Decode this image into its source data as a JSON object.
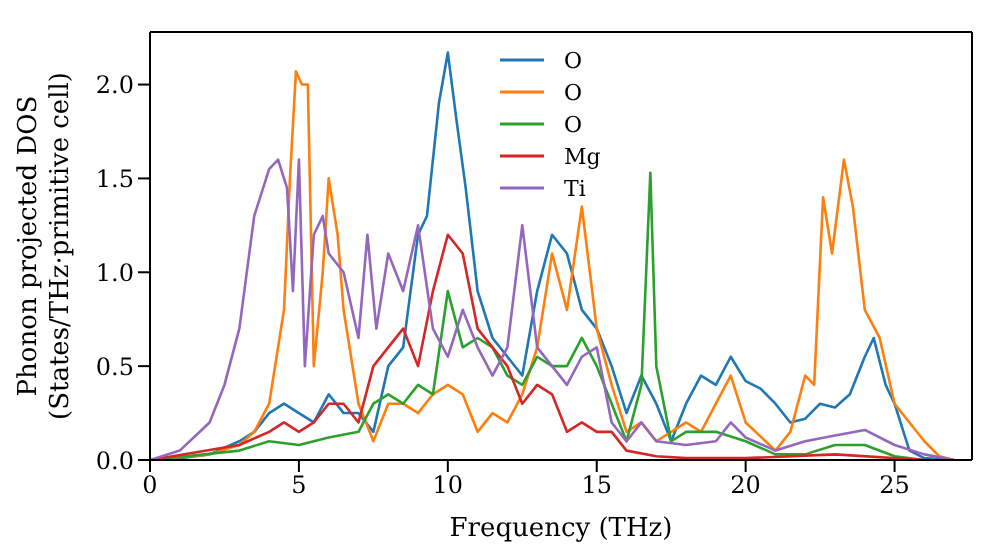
{
  "chart_data": {
    "type": "line",
    "xlabel": "Frequency (THz)",
    "ylabel": "Phonon projected DOS\n(States/THz·primitive cell)",
    "xlim": [
      0,
      27.6
    ],
    "xticks": [
      0,
      5,
      10,
      15,
      20,
      25
    ],
    "ylim": [
      0,
      2.28
    ],
    "yticks": [
      {
        "value": 0,
        "label": "0.0"
      },
      {
        "value": 0.5,
        "label": "0.5"
      },
      {
        "value": 1,
        "label": "1.0"
      },
      {
        "value": 1.5,
        "label": "1.5"
      },
      {
        "value": 2,
        "label": "2.0"
      }
    ],
    "legend": "top",
    "grid": false,
    "marker": "none",
    "line_style": "solid",
    "series": [
      {
        "name": "O",
        "color": "#1f77b4",
        "x": [
          0,
          1,
          2,
          3,
          3.5,
          4,
          4.5,
          5,
          5.5,
          6,
          6.5,
          7,
          7.5,
          8,
          8.5,
          9,
          9.3,
          9.7,
          10,
          10.3,
          10.6,
          11,
          11.5,
          12,
          12.5,
          13,
          13.5,
          14,
          14.5,
          15,
          15.5,
          16,
          16.5,
          17,
          17.5,
          18,
          18.5,
          19,
          19.5,
          20,
          20.5,
          21,
          21.5,
          22,
          22.5,
          23,
          23.5,
          24,
          24.3,
          24.7,
          25,
          25.5,
          26,
          27
        ],
        "values": [
          0,
          0.01,
          0.03,
          0.1,
          0.15,
          0.25,
          0.3,
          0.25,
          0.2,
          0.35,
          0.25,
          0.25,
          0.15,
          0.5,
          0.6,
          1.2,
          1.3,
          1.9,
          2.17,
          1.8,
          1.45,
          0.9,
          0.65,
          0.55,
          0.45,
          0.9,
          1.2,
          1.1,
          0.8,
          0.7,
          0.5,
          0.25,
          0.45,
          0.3,
          0.1,
          0.3,
          0.45,
          0.4,
          0.55,
          0.42,
          0.38,
          0.3,
          0.2,
          0.22,
          0.3,
          0.28,
          0.35,
          0.55,
          0.65,
          0.4,
          0.3,
          0.05,
          0.01,
          0
        ]
      },
      {
        "name": "O",
        "color": "#ff7f0e",
        "x": [
          0,
          2,
          3,
          3.5,
          4,
          4.5,
          4.7,
          4.9,
          5.1,
          5.3,
          5.5,
          5.8,
          6,
          6.3,
          6.5,
          7,
          7.5,
          8,
          8.5,
          9,
          9.5,
          10,
          10.5,
          11,
          11.5,
          12,
          12.5,
          13,
          13.5,
          14,
          14.5,
          15,
          15.5,
          16,
          16.5,
          17,
          17.5,
          18,
          18.5,
          19,
          19.5,
          20,
          21,
          21.5,
          22,
          22.3,
          22.6,
          22.9,
          23.3,
          23.6,
          24,
          24.5,
          25,
          25.5,
          26,
          26.5,
          27
        ],
        "values": [
          0,
          0.03,
          0.08,
          0.15,
          0.3,
          0.8,
          1.5,
          2.07,
          2,
          2,
          0.5,
          1,
          1.5,
          1.2,
          0.8,
          0.3,
          0.1,
          0.3,
          0.3,
          0.25,
          0.35,
          0.4,
          0.35,
          0.15,
          0.25,
          0.2,
          0.35,
          0.6,
          1.1,
          0.8,
          1.35,
          0.7,
          0.4,
          0.15,
          0.2,
          0.1,
          0.15,
          0.2,
          0.15,
          0.3,
          0.45,
          0.2,
          0.05,
          0.15,
          0.45,
          0.4,
          1.4,
          1.1,
          1.6,
          1.35,
          0.8,
          0.65,
          0.3,
          0.2,
          0.1,
          0.02,
          0
        ]
      },
      {
        "name": "O",
        "color": "#2ca02c",
        "x": [
          0,
          3,
          4,
          5,
          6,
          7,
          7.5,
          8,
          8.5,
          9,
          9.5,
          10,
          10.5,
          11,
          11.5,
          12,
          12.5,
          13,
          13.5,
          14,
          14.5,
          15,
          15.5,
          16,
          16.5,
          16.8,
          17,
          17.5,
          18,
          19,
          20,
          21,
          22,
          23,
          24,
          25,
          26
        ],
        "values": [
          0,
          0.05,
          0.1,
          0.08,
          0.12,
          0.15,
          0.3,
          0.35,
          0.3,
          0.4,
          0.35,
          0.9,
          0.6,
          0.65,
          0.6,
          0.45,
          0.4,
          0.55,
          0.5,
          0.5,
          0.65,
          0.5,
          0.3,
          0.1,
          0.4,
          1.53,
          0.5,
          0.1,
          0.15,
          0.15,
          0.1,
          0.03,
          0.03,
          0.08,
          0.08,
          0.02,
          0
        ]
      },
      {
        "name": "Mg",
        "color": "#d62728",
        "x": [
          0,
          3,
          4,
          4.5,
          5,
          5.5,
          6,
          6.5,
          7,
          7.5,
          8,
          8.5,
          9,
          9.5,
          10,
          10.5,
          11,
          11.5,
          12,
          12.5,
          13,
          13.5,
          14,
          14.5,
          15,
          15.5,
          16,
          17,
          18,
          20,
          23,
          26
        ],
        "values": [
          0,
          0.08,
          0.15,
          0.2,
          0.15,
          0.2,
          0.3,
          0.3,
          0.2,
          0.5,
          0.6,
          0.7,
          0.5,
          0.9,
          1.2,
          1.1,
          0.7,
          0.6,
          0.5,
          0.3,
          0.4,
          0.35,
          0.15,
          0.2,
          0.15,
          0.15,
          0.05,
          0.02,
          0.01,
          0.01,
          0.03,
          0
        ]
      },
      {
        "name": "Ti",
        "color": "#9467bd",
        "x": [
          0,
          1,
          2,
          2.5,
          3,
          3.5,
          4,
          4.3,
          4.6,
          4.8,
          5,
          5.2,
          5.5,
          5.8,
          6,
          6.5,
          7,
          7.3,
          7.6,
          8,
          8.5,
          9,
          9.5,
          10,
          10.5,
          11,
          11.5,
          12,
          12.5,
          13,
          13.5,
          14,
          14.5,
          15,
          15.5,
          16,
          16.5,
          17,
          18,
          19,
          19.5,
          20,
          21,
          22,
          23,
          24,
          25,
          26,
          27
        ],
        "values": [
          0,
          0.05,
          0.2,
          0.4,
          0.7,
          1.3,
          1.55,
          1.6,
          1.45,
          0.9,
          1.6,
          0.5,
          1.2,
          1.3,
          1.1,
          1,
          0.65,
          1.2,
          0.7,
          1.1,
          0.9,
          1.25,
          0.7,
          0.55,
          0.8,
          0.6,
          0.45,
          0.6,
          1.25,
          0.6,
          0.5,
          0.4,
          0.55,
          0.6,
          0.2,
          0.1,
          0.2,
          0.1,
          0.08,
          0.1,
          0.2,
          0.12,
          0.05,
          0.1,
          0.13,
          0.16,
          0.08,
          0.03,
          0
        ]
      }
    ]
  }
}
